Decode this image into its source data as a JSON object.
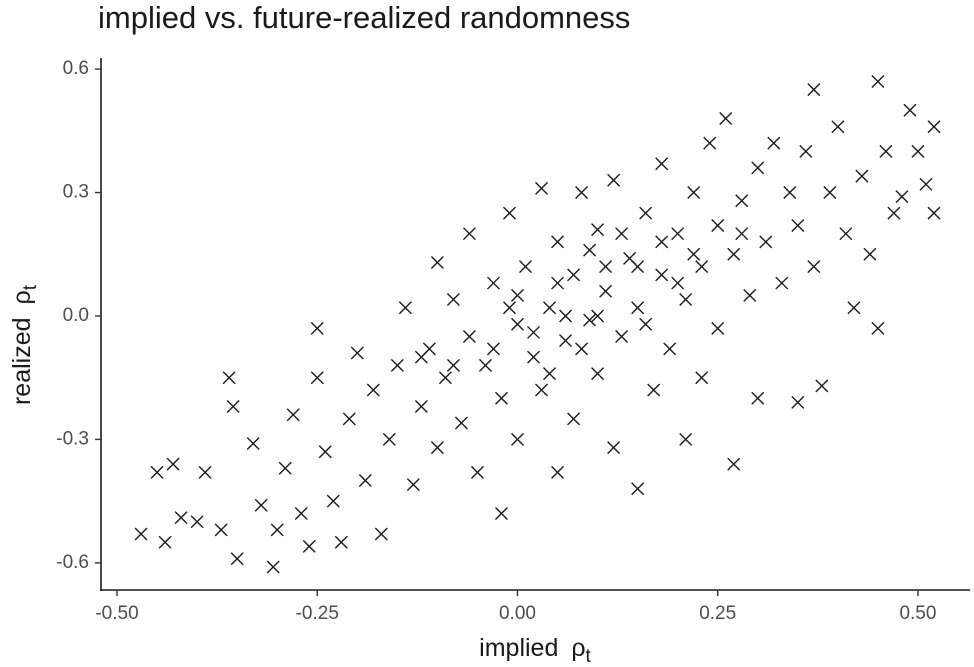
{
  "chart_data": {
    "type": "scatter",
    "title": "implied vs. future-realized randomness",
    "xlabel": [
      "implied",
      "ρ",
      "t"
    ],
    "ylabel": [
      "realized",
      "ρ",
      "t"
    ],
    "color": "#1a1a1a",
    "marker": "x",
    "xlim": [
      -0.52,
      0.565
    ],
    "ylim": [
      -0.666,
      0.627
    ],
    "xticks": [
      {
        "value": -0.5,
        "label": "-0.50"
      },
      {
        "value": -0.25,
        "label": "-0.25"
      },
      {
        "value": 0,
        "label": "0.00"
      },
      {
        "value": 0.25,
        "label": "0.25"
      },
      {
        "value": 0.5,
        "label": "0.50"
      }
    ],
    "yticks": [
      -0.6,
      -0.3,
      {
        "value": 0,
        "label": "0.0"
      },
      0.3,
      0.6
    ],
    "x": [
      -0.47,
      -0.45,
      -0.44,
      -0.43,
      -0.42,
      -0.4,
      -0.39,
      -0.37,
      -0.36,
      -0.355,
      -0.35,
      -0.33,
      -0.32,
      -0.305,
      -0.3,
      -0.29,
      -0.28,
      -0.27,
      -0.26,
      -0.25,
      -0.25,
      -0.24,
      -0.23,
      -0.22,
      -0.21,
      -0.2,
      -0.19,
      -0.18,
      -0.17,
      -0.16,
      -0.15,
      -0.14,
      -0.13,
      -0.12,
      -0.11,
      -0.1,
      -0.1,
      -0.09,
      -0.08,
      -0.07,
      -0.06,
      -0.06,
      -0.05,
      -0.04,
      -0.03,
      -0.02,
      -0.02,
      -0.01,
      0,
      0,
      0.01,
      0.02,
      0.03,
      0.03,
      0.04,
      0.05,
      0.05,
      0.06,
      0.07,
      0.07,
      0.08,
      0.09,
      0.1,
      0.1,
      0.11,
      0.12,
      0.12,
      0.13,
      0.14,
      0.15,
      0.15,
      0.16,
      0.17,
      0.18,
      0.18,
      0.19,
      0.2,
      0.21,
      0.21,
      0.22,
      0.23,
      0.23,
      0.24,
      0.25,
      0.25,
      0.26,
      0.27,
      0.27,
      0.28,
      0.29,
      0.3,
      0.3,
      0.31,
      0.32,
      0.33,
      0.34,
      0.35,
      0.35,
      0.36,
      0.37,
      0.37,
      0.38,
      0.39,
      0.4,
      0.41,
      0.42,
      0.43,
      0.44,
      0.45,
      0.45,
      0.46,
      0.47,
      0.48,
      0.49,
      0.5,
      0.51,
      0.52,
      0.52,
      0,
      0.05,
      0.1,
      0.15,
      0.2,
      0.08,
      -0.03,
      0.13,
      0.18,
      0.02,
      -0.08,
      0.22,
      0.11,
      0.06,
      -0.12,
      0.16,
      0.28,
      0.04,
      -0.01,
      0.09
    ],
    "values": [
      -0.53,
      -0.38,
      -0.55,
      -0.36,
      -0.49,
      -0.5,
      -0.38,
      -0.52,
      -0.15,
      -0.22,
      -0.59,
      -0.31,
      -0.46,
      -0.61,
      -0.52,
      -0.37,
      -0.24,
      -0.48,
      -0.56,
      -0.03,
      -0.15,
      -0.33,
      -0.45,
      -0.55,
      -0.25,
      -0.09,
      -0.4,
      -0.18,
      -0.53,
      -0.3,
      -0.12,
      0.02,
      -0.41,
      -0.22,
      -0.08,
      0.13,
      -0.32,
      -0.15,
      0.04,
      -0.26,
      0.2,
      -0.05,
      -0.38,
      -0.12,
      0.08,
      -0.2,
      -0.48,
      0.25,
      -0.02,
      -0.3,
      0.12,
      -0.1,
      0.31,
      -0.18,
      0.02,
      -0.38,
      0.18,
      -0.06,
      0.1,
      -0.25,
      0.3,
      -0.01,
      -0.14,
      0.21,
      0.06,
      -0.32,
      0.33,
      -0.05,
      0.14,
      -0.42,
      0.02,
      0.25,
      -0.18,
      0.1,
      0.37,
      -0.08,
      0.2,
      -0.3,
      0.04,
      0.3,
      0.12,
      -0.15,
      0.42,
      0.22,
      -0.03,
      0.48,
      0.15,
      -0.36,
      0.28,
      0.05,
      0.36,
      -0.2,
      0.18,
      0.42,
      0.08,
      0.3,
      -0.21,
      0.22,
      0.4,
      0.12,
      0.55,
      -0.17,
      0.3,
      0.46,
      0.2,
      0.02,
      0.34,
      0.15,
      0.57,
      -0.03,
      0.4,
      0.25,
      0.29,
      0.5,
      0.4,
      0.32,
      0.46,
      0.25,
      0.05,
      0.08,
      0,
      0.12,
      0.08,
      -0.08,
      -0.08,
      0.2,
      0.18,
      -0.04,
      -0.12,
      0.15,
      0.12,
      0,
      -0.1,
      -0.02,
      0.2,
      -0.14,
      0.02,
      0.16
    ]
  }
}
